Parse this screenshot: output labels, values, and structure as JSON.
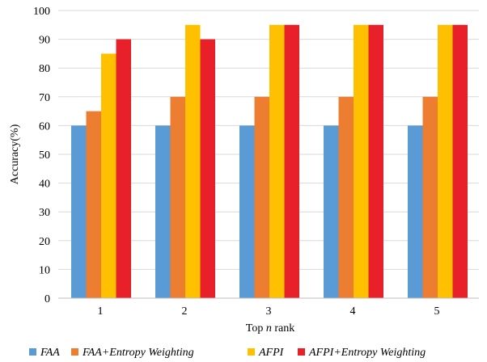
{
  "chart_data": {
    "type": "bar",
    "title": "",
    "xlabel": {
      "prefix": "Top ",
      "var": "n",
      "suffix": " rank"
    },
    "ylabel": "Accuracy(%)",
    "ylim": [
      0,
      100
    ],
    "yticks": [
      0,
      10,
      20,
      30,
      40,
      50,
      60,
      70,
      80,
      90,
      100
    ],
    "grid": true,
    "legend_position": "bottom",
    "categories": [
      "1",
      "2",
      "3",
      "4",
      "5"
    ],
    "series": [
      {
        "name": "FAA",
        "color": "#5B9BD5",
        "values": [
          60,
          60,
          60,
          60,
          60
        ]
      },
      {
        "name": "FAA+Entropy Weighting",
        "color": "#ED7D31",
        "values": [
          65,
          70,
          70,
          70,
          70
        ]
      },
      {
        "name": "AFPI",
        "color": "#FFC000",
        "values": [
          85,
          95,
          95,
          95,
          95
        ]
      },
      {
        "name": "AFPI+Entropy Weighting",
        "color": "#E8202A",
        "values": [
          90,
          90,
          95,
          95,
          95
        ]
      }
    ]
  }
}
